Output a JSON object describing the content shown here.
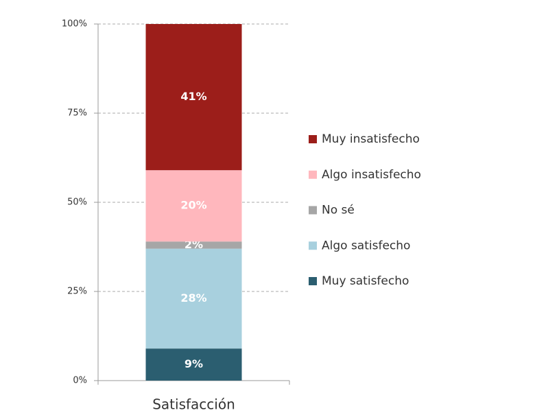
{
  "chart_data": {
    "type": "stacked_bar",
    "categories": [
      "Satisfacción"
    ],
    "series": [
      {
        "name": "Muy satisfecho",
        "color": "#2b5e70",
        "values": [
          9
        ],
        "value_labels": [
          "9%"
        ]
      },
      {
        "name": "Algo satisfecho",
        "color": "#a8d0de",
        "values": [
          28
        ],
        "value_labels": [
          "28%"
        ]
      },
      {
        "name": "No sé",
        "color": "#a6a6a6",
        "values": [
          2
        ],
        "value_labels": [
          "2%"
        ]
      },
      {
        "name": "Algo insatisfecho",
        "color": "#ffb7bd",
        "values": [
          20
        ],
        "value_labels": [
          "20%"
        ]
      },
      {
        "name": "Muy insatisfecho",
        "color": "#9c1e1a",
        "values": [
          41
        ],
        "value_labels": [
          "41%"
        ]
      }
    ],
    "ylim": [
      0,
      100
    ],
    "yticks": [
      {
        "value": 0,
        "label": "0%"
      },
      {
        "value": 25,
        "label": "25%"
      },
      {
        "value": 50,
        "label": "50%"
      },
      {
        "value": 75,
        "label": "75%"
      },
      {
        "value": 100,
        "label": "100%"
      }
    ],
    "grid": true,
    "legend": "right"
  }
}
